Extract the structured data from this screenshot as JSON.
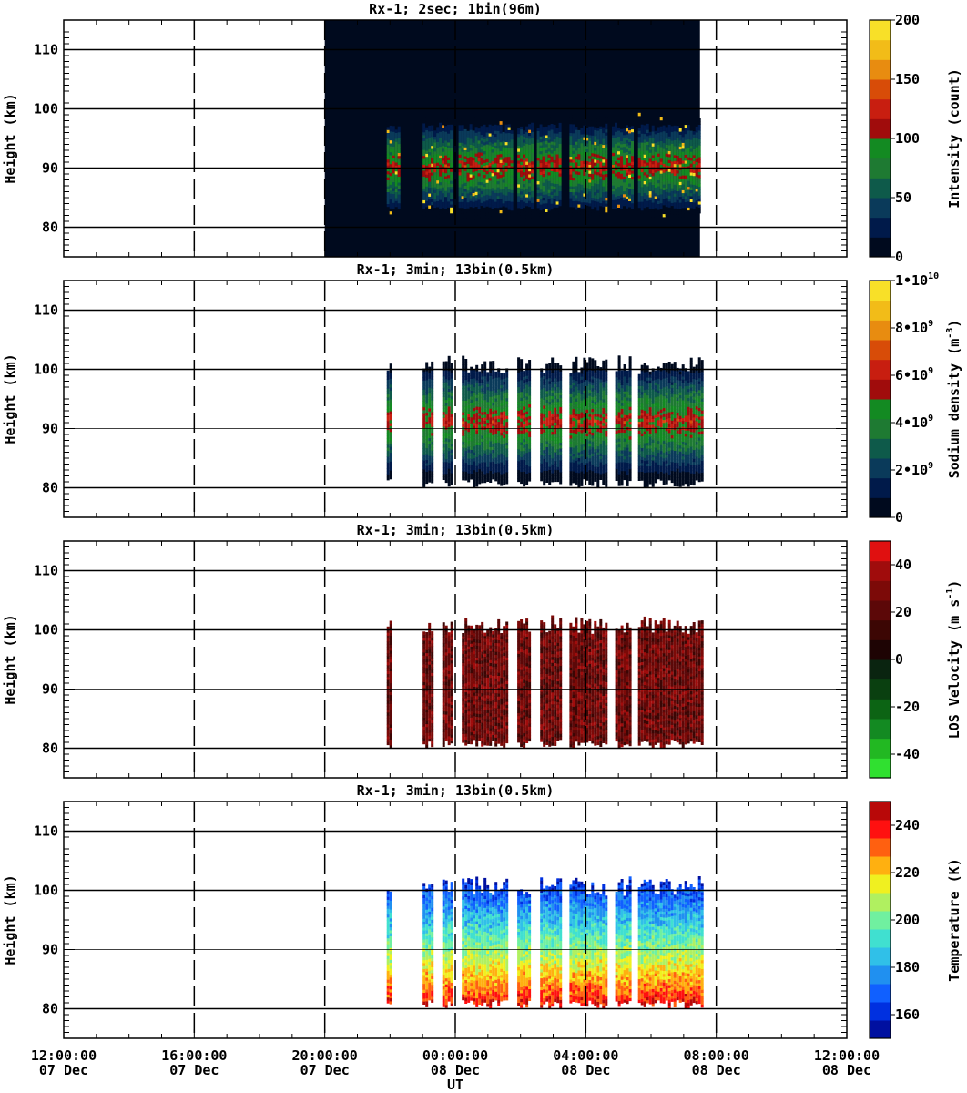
{
  "chart_data": [
    {
      "type": "heatmap",
      "title": "Rx-1;  2sec; 1bin(96m)",
      "ylabel": "Height (km)",
      "ylim": [
        75,
        115
      ],
      "yticks": [
        "80",
        "90",
        "100",
        "110"
      ],
      "colorbar_label": "Intensity (count)",
      "colorbar_ticks": [
        "0",
        "50",
        "100",
        "150",
        "200"
      ],
      "colorbar_range": [
        0,
        200
      ],
      "colormap": [
        "#000a1e",
        "#001a4a",
        "#0a3a5a",
        "#0e5a4a",
        "#1e7a32",
        "#138a22",
        "#a00c0c",
        "#c81e10",
        "#d84c08",
        "#e88c10",
        "#f2bc18",
        "#f8e028"
      ],
      "background_fill": {
        "x_start": "20:00:00 07 Dec",
        "x_end": "07:30:00 08 Dec",
        "color": "#000a1e"
      },
      "observation_windows_h": [
        [
          21.9,
          22.3
        ],
        [
          23.0,
          23.5
        ],
        [
          23.5,
          23.9
        ],
        [
          24.1,
          25.7
        ],
        [
          25.9,
          26.4
        ],
        [
          26.5,
          27.2
        ],
        [
          27.5,
          28.0
        ],
        [
          28.0,
          28.6
        ],
        [
          28.8,
          29.4
        ],
        [
          29.6,
          31.5
        ]
      ],
      "layer": {
        "bottom_km": 81,
        "top_km": 99,
        "peak_km": 90
      }
    },
    {
      "type": "heatmap",
      "title": "Rx-1; 3min; 13bin(0.5km)",
      "ylabel": "Height (km)",
      "ylim": [
        75,
        115
      ],
      "yticks": [
        "80",
        "90",
        "100",
        "110"
      ],
      "colorbar_label_html": [
        "Sodium density (m",
        "-3",
        ")"
      ],
      "colorbar_ticks": [
        "0",
        "2•10",
        "9",
        "4•10",
        "9",
        "6•10",
        "9",
        "8•10",
        "9",
        "1•10",
        "10"
      ],
      "colorbar_range": [
        0,
        10000000000
      ],
      "colormap": [
        "#000a1e",
        "#001a4a",
        "#0a3a5a",
        "#0e5a4a",
        "#1e7a32",
        "#138a22",
        "#a00c0c",
        "#c81e10",
        "#d84c08",
        "#e88c10",
        "#f2bc18",
        "#f8e028"
      ],
      "observation_windows_h": [
        [
          21.9,
          22.0
        ],
        [
          23.0,
          23.3
        ],
        [
          23.6,
          23.9
        ],
        [
          24.2,
          25.6
        ],
        [
          25.9,
          26.3
        ],
        [
          26.6,
          27.2
        ],
        [
          27.5,
          28.0
        ],
        [
          28.0,
          28.6
        ],
        [
          28.9,
          29.4
        ],
        [
          29.6,
          31.6
        ]
      ],
      "layer": {
        "bottom_km": 80,
        "top_km": 102,
        "peak_km": 91
      }
    },
    {
      "type": "heatmap",
      "title": "Rx-1; 3min; 13bin(0.5km)",
      "ylabel": "Height (km)",
      "ylim": [
        75,
        115
      ],
      "yticks": [
        "80",
        "90",
        "100",
        "110"
      ],
      "colorbar_label_html": [
        "LOS Velocity (m s",
        "-1",
        ")"
      ],
      "colorbar_ticks": [
        "-40",
        "-20",
        "0",
        "20",
        "40"
      ],
      "colorbar_range": [
        -50,
        50
      ],
      "colormap": [
        "#30e030",
        "#22b822",
        "#138a22",
        "#0c6414",
        "#0a4010",
        "#0a2410",
        "#1e0404",
        "#3c0604",
        "#5c0808",
        "#7c0a08",
        "#a00c0c",
        "#e01010"
      ],
      "observation_windows_h": [
        [
          21.9,
          22.0
        ],
        [
          23.0,
          23.3
        ],
        [
          23.6,
          23.9
        ],
        [
          24.2,
          25.6
        ],
        [
          25.9,
          26.3
        ],
        [
          26.6,
          27.2
        ],
        [
          27.5,
          28.0
        ],
        [
          28.0,
          28.6
        ],
        [
          28.9,
          29.4
        ],
        [
          29.6,
          31.6
        ]
      ],
      "layer": {
        "bottom_km": 80,
        "top_km": 102,
        "peak_km": 91
      }
    },
    {
      "type": "heatmap",
      "title": "Rx-1; 3min; 13bin(0.5km)",
      "ylabel": "Height (km)",
      "xlabel": "UT",
      "ylim": [
        75,
        115
      ],
      "yticks": [
        "80",
        "90",
        "100",
        "110"
      ],
      "xticks": [
        {
          "time": "12:00:00",
          "date": "07 Dec"
        },
        {
          "time": "16:00:00",
          "date": "07 Dec"
        },
        {
          "time": "20:00:00",
          "date": "07 Dec"
        },
        {
          "time": "00:00:00",
          "date": "08 Dec"
        },
        {
          "time": "04:00:00",
          "date": "08 Dec"
        },
        {
          "time": "08:00:00",
          "date": "08 Dec"
        },
        {
          "time": "12:00:00",
          "date": "08 Dec"
        }
      ],
      "colorbar_label": "Temperature (K)",
      "colorbar_ticks": [
        "160",
        "180",
        "200",
        "220",
        "240"
      ],
      "colorbar_range": [
        150,
        250
      ],
      "colormap": [
        "#0010a0",
        "#0030e0",
        "#1060ff",
        "#2090f0",
        "#30c0e8",
        "#40e0d0",
        "#70f0a0",
        "#b0f060",
        "#f0f020",
        "#ffb010",
        "#ff6010",
        "#ff1010",
        "#b80808"
      ],
      "observation_windows_h": [
        [
          21.9,
          22.0
        ],
        [
          23.0,
          23.3
        ],
        [
          23.6,
          23.9
        ],
        [
          24.2,
          25.6
        ],
        [
          25.9,
          26.3
        ],
        [
          26.6,
          27.2
        ],
        [
          27.5,
          28.0
        ],
        [
          28.0,
          28.6
        ],
        [
          28.9,
          29.4
        ],
        [
          29.6,
          31.6
        ]
      ],
      "layer": {
        "bottom_km": 80,
        "top_km": 102,
        "peak_km": 91
      }
    }
  ]
}
